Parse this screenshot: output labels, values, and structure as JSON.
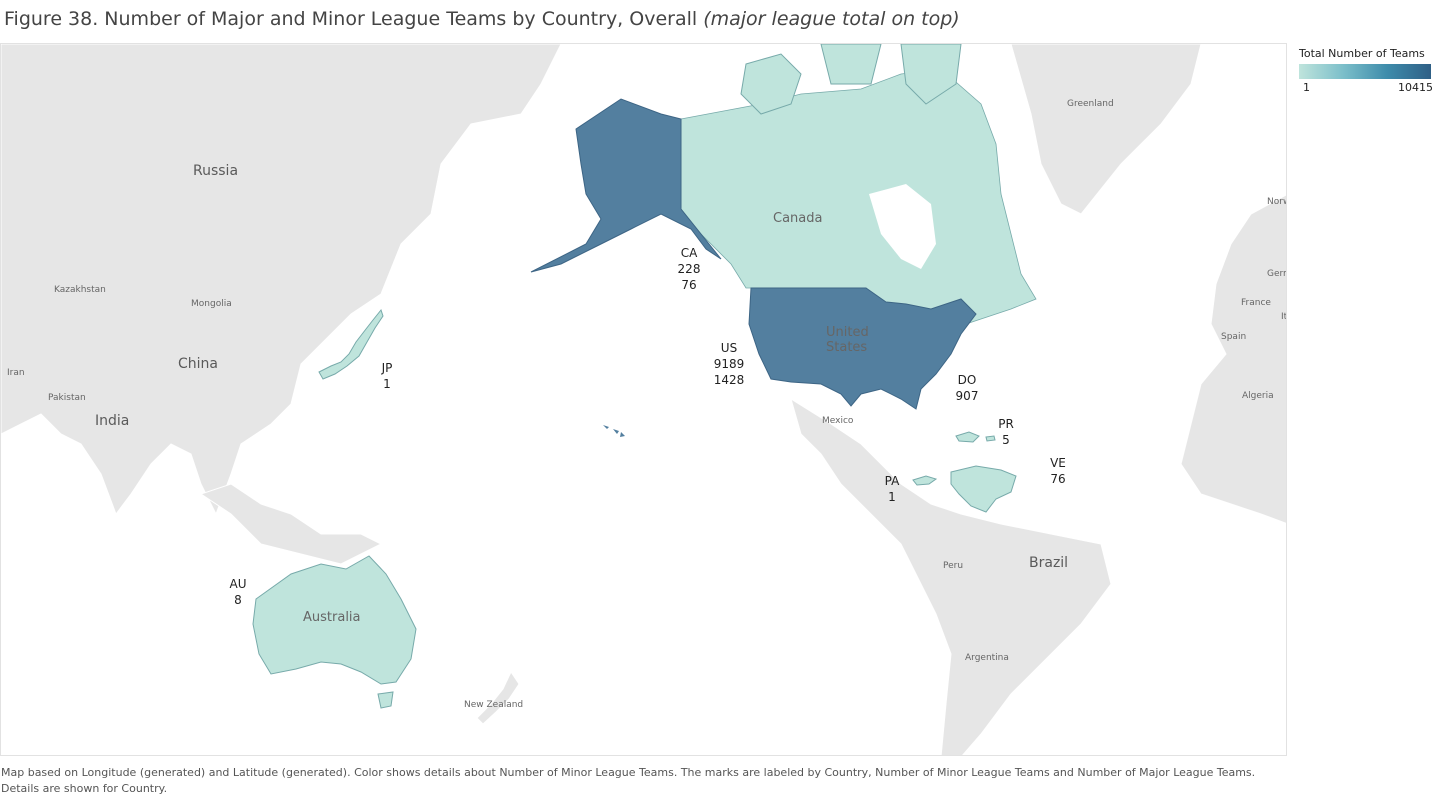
{
  "title": {
    "main": "Figure 38. Number of Major and Minor League Teams by Country, Overall",
    "italic": "(major league total on top)"
  },
  "legend": {
    "title": "Total Number of Teams",
    "min_label": "1",
    "max_label": "10415",
    "colors": [
      "#bfe4dc",
      "#2f5f86"
    ]
  },
  "caption": {
    "line1": "Map based on Longitude (generated) and Latitude (generated).  Color shows details about Number of Minor League Teams.  The marks are labeled by Country, Number of Minor League Teams and Number of Major League Teams.",
    "line2": "Details are shown for Country."
  },
  "marks": [
    {
      "code": "CA",
      "line2": "228",
      "line3": "76"
    },
    {
      "code": "US",
      "line2": "9189",
      "line3": "1428"
    },
    {
      "code": "JP",
      "line2": "1",
      "line3": ""
    },
    {
      "code": "DO",
      "line2": "907",
      "line3": ""
    },
    {
      "code": "PR",
      "line2": "5",
      "line3": ""
    },
    {
      "code": "VE",
      "line2": "76",
      "line3": ""
    },
    {
      "code": "PA",
      "line2": "1",
      "line3": ""
    },
    {
      "code": "AU",
      "line2": "8",
      "line3": ""
    }
  ],
  "place_labels": {
    "russia": "Russia",
    "kazakhstan": "Kazakhstan",
    "mongolia": "Mongolia",
    "china": "China",
    "iran": "Iran",
    "pakistan": "Pakistan",
    "india": "India",
    "greenland": "Greenland",
    "canada": "Canada",
    "united1": "United",
    "united2": "States",
    "mexico": "Mexico",
    "peru": "Peru",
    "brazil": "Brazil",
    "argentina": "Argentina",
    "australia": "Australia",
    "new_zealand": "New Zealand",
    "france": "France",
    "spain": "Spain",
    "algeria": "Algeria",
    "norw": "Norw",
    "germ": "Germ",
    "it": "It"
  },
  "colors": {
    "land": "#e6e6e6",
    "water": "#ffffff",
    "border": "#ffffff",
    "highlight_light": "#bfe4dc",
    "highlight_dark": "#537f9f"
  }
}
